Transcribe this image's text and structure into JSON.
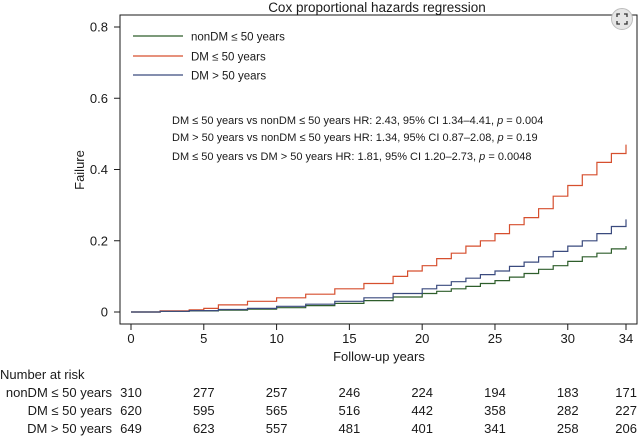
{
  "chart_data": {
    "type": "line",
    "step": true,
    "title": "Cox proportional hazards regression",
    "xlabel": "Follow-up years",
    "ylabel": "Failure",
    "xlim": [
      0,
      34
    ],
    "ylim": [
      0,
      0.8
    ],
    "x_ticks": [
      "0",
      "5",
      "10",
      "15",
      "20",
      "25",
      "30",
      "34"
    ],
    "x_tick_values": [
      0,
      5,
      10,
      15,
      20,
      25,
      30,
      34
    ],
    "y_ticks": [
      "0",
      "0.2",
      "0.4",
      "0.6",
      "0.8"
    ],
    "y_tick_values": [
      0,
      0.2,
      0.4,
      0.6,
      0.8
    ],
    "legend_position": "top-left",
    "series": [
      {
        "name": "nonDM ≤ 50 years",
        "color": "#2e5e2b",
        "x": [
          0,
          2,
          4,
          6,
          8,
          10,
          12,
          14,
          16,
          18,
          20,
          21,
          22,
          23,
          24,
          25,
          26,
          27,
          28,
          29,
          30,
          31,
          32,
          33,
          34
        ],
        "y": [
          0,
          0.002,
          0.003,
          0.005,
          0.008,
          0.012,
          0.018,
          0.024,
          0.032,
          0.042,
          0.052,
          0.058,
          0.065,
          0.072,
          0.08,
          0.088,
          0.098,
          0.108,
          0.12,
          0.13,
          0.142,
          0.155,
          0.165,
          0.177,
          0.185
        ]
      },
      {
        "name": "DM ≤ 50 years",
        "color": "#d64f2e",
        "x": [
          0,
          2,
          4,
          5,
          6,
          8,
          10,
          12,
          14,
          16,
          18,
          19,
          20,
          21,
          22,
          23,
          24,
          25,
          26,
          27,
          28,
          29,
          30,
          31,
          32,
          33,
          34
        ],
        "y": [
          0,
          0.003,
          0.006,
          0.01,
          0.02,
          0.03,
          0.04,
          0.05,
          0.065,
          0.08,
          0.1,
          0.115,
          0.13,
          0.15,
          0.165,
          0.185,
          0.2,
          0.22,
          0.245,
          0.265,
          0.29,
          0.325,
          0.355,
          0.385,
          0.42,
          0.445,
          0.47
        ]
      },
      {
        "name": "DM > 50 years",
        "color": "#3a4a7e",
        "x": [
          0,
          2,
          4,
          6,
          8,
          10,
          12,
          14,
          16,
          18,
          20,
          21,
          22,
          23,
          24,
          25,
          26,
          27,
          28,
          29,
          30,
          31,
          32,
          33,
          34
        ],
        "y": [
          0,
          0.002,
          0.004,
          0.007,
          0.01,
          0.016,
          0.022,
          0.03,
          0.04,
          0.052,
          0.065,
          0.075,
          0.085,
          0.095,
          0.105,
          0.115,
          0.128,
          0.14,
          0.155,
          0.17,
          0.185,
          0.2,
          0.22,
          0.24,
          0.26
        ]
      }
    ],
    "annotations": [
      {
        "prefix": "DM ≤ 50 years vs nonDM ≤ 50 years HR: 2.43, 95% CI 1.34–4.41, ",
        "p_label": "p",
        "p_value": " = 0.004"
      },
      {
        "prefix": "DM > 50 years vs nonDM ≤ 50 years HR: 1.34, 95% CI 0.87–2.08, ",
        "p_label": "p",
        "p_value": " = 0.19"
      },
      {
        "prefix": "DM ≤ 50 years vs DM > 50 years HR: 1.81, 95% CI 1.20–2.73, ",
        "p_label": "p",
        "p_value": " = 0.0048"
      }
    ],
    "risk_table": {
      "header": "Number at risk",
      "columns": [
        "0",
        "5",
        "10",
        "15",
        "20",
        "25",
        "30",
        "34"
      ],
      "column_values": [
        0,
        5,
        10,
        15,
        20,
        25,
        30,
        34
      ],
      "rows": [
        {
          "label": "nonDM ≤ 50 years",
          "values": [
            "310",
            "277",
            "257",
            "246",
            "224",
            "194",
            "183",
            "171"
          ]
        },
        {
          "label": "DM ≤ 50 years",
          "values": [
            "620",
            "595",
            "565",
            "516",
            "442",
            "358",
            "282",
            "227"
          ]
        },
        {
          "label": "DM > 50 years",
          "values": [
            "649",
            "623",
            "557",
            "481",
            "401",
            "341",
            "258",
            "206"
          ]
        }
      ]
    }
  },
  "ui": {
    "expand_icon": "expand-icon"
  }
}
